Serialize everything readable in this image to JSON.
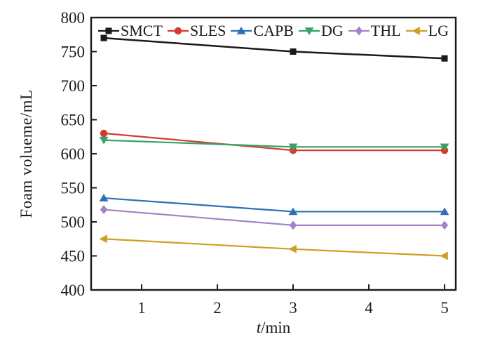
{
  "figure": {
    "background_color": "#ffffff",
    "axis_color": "#1a1a1a"
  },
  "chart_data": {
    "type": "line",
    "x": [
      0.5,
      3,
      5
    ],
    "series": [
      {
        "name": "SMCT",
        "color": "#1a1a1a",
        "marker": "square",
        "values": [
          770,
          750,
          740
        ]
      },
      {
        "name": "SLES",
        "color": "#d53a33",
        "marker": "circle",
        "values": [
          630,
          605,
          605
        ]
      },
      {
        "name": "CAPB",
        "color": "#2e6fb7",
        "marker": "triangle-up",
        "values": [
          535,
          515,
          515
        ]
      },
      {
        "name": "DG",
        "color": "#35a368",
        "marker": "triangle-down",
        "values": [
          620,
          610,
          610
        ]
      },
      {
        "name": "THL",
        "color": "#a383c6",
        "marker": "diamond",
        "values": [
          518,
          495,
          495
        ]
      },
      {
        "name": "LG",
        "color": "#cf9f25",
        "marker": "triangle-left",
        "values": [
          475,
          460,
          450
        ]
      }
    ],
    "xlabel_italic": "t",
    "xlabel_rest": "/min",
    "ylabel": "Foam volueme/mL",
    "xlim": [
      0.333,
      5.148
    ],
    "ylim": [
      400,
      800
    ],
    "x_ticks": [
      1,
      2,
      3,
      4,
      5
    ],
    "y_ticks": [
      400,
      450,
      500,
      550,
      600,
      650,
      700,
      750,
      800
    ],
    "grid": false,
    "legend_position": "top-inside"
  }
}
